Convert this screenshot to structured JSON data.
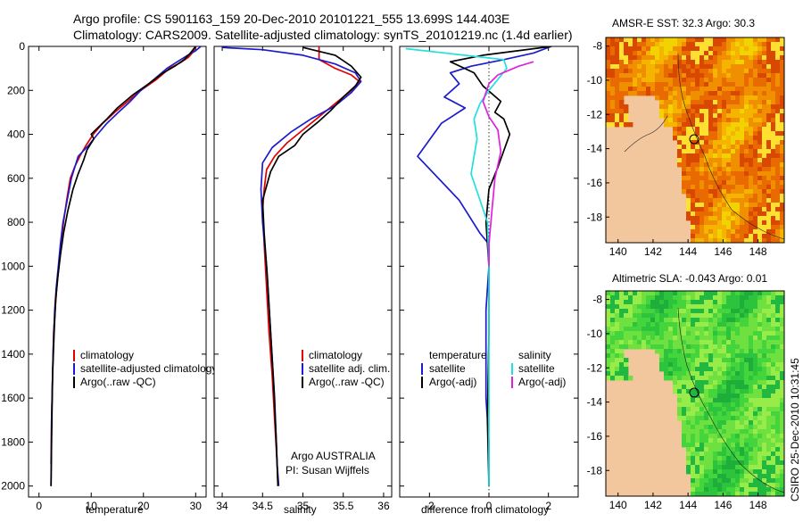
{
  "header": {
    "line1": "Argo profile: CS 5901163_159 20-Dec-2010 20101221_555 13.699S 144.403E",
    "line2": "Climatology: CARS2009. Satellite-adjusted climatology: synTS_20101219.nc (1.4d earlier)"
  },
  "colors": {
    "climatology": "#e00000",
    "satellite": "#1b1bcc",
    "argo": "#000000",
    "sat_sal": "#20e0e0",
    "argo_sal": "#e020e0"
  },
  "chart_data": [
    {
      "id": "temperature",
      "type": "line",
      "xlabel": "temperature",
      "ylabel": "",
      "xlim": [
        -2,
        32
      ],
      "ylim": [
        2050,
        0
      ],
      "xticks": [
        0,
        10,
        20,
        30
      ],
      "xtick_labels": [
        "0",
        "10",
        "20",
        "30"
      ],
      "yticks": [
        0,
        200,
        400,
        600,
        800,
        1000,
        1200,
        1400,
        1600,
        1800,
        2000
      ],
      "ytick_labels": [
        "0",
        "200",
        "400",
        "600",
        "800",
        "1000",
        "1200",
        "1400",
        "1600",
        "1800",
        "2000"
      ],
      "legend": [
        "climatology",
        "satellite-adjusted climatology",
        "Argo(..raw -QC)"
      ],
      "series": [
        {
          "name": "climatology",
          "color": "#e00000",
          "x": [
            30.0,
            29.5,
            28.6,
            27.0,
            25.0,
            22.5,
            19.5,
            17.0,
            14.5,
            12.2,
            10.4,
            9.0,
            7.8,
            6.8,
            6.0,
            5.3,
            4.7,
            4.2,
            3.8,
            3.4,
            3.1,
            2.8,
            2.6,
            2.4,
            2.3
          ],
          "y": [
            0,
            25,
            50,
            75,
            100,
            150,
            200,
            250,
            300,
            350,
            400,
            450,
            500,
            550,
            600,
            700,
            800,
            900,
            1000,
            1100,
            1200,
            1300,
            1500,
            1700,
            1900
          ]
        },
        {
          "name": "satellite-adjusted climatology",
          "color": "#1b1bcc",
          "x": [
            31.0,
            30.0,
            28.5,
            26.5,
            24.5,
            22.0,
            19.5,
            17.5,
            15.2,
            13.0,
            11.2,
            9.5,
            7.5,
            6.2,
            5.4,
            4.6,
            4.1,
            3.7,
            3.3,
            3.0,
            2.7,
            2.4,
            2.3
          ],
          "y": [
            0,
            20,
            40,
            70,
            100,
            150,
            200,
            250,
            300,
            350,
            400,
            450,
            500,
            600,
            700,
            800,
            900,
            1000,
            1100,
            1200,
            1400,
            1700,
            2000
          ]
        },
        {
          "name": "Argo(..raw -QC)",
          "color": "#000000",
          "x": [
            30.0,
            29.0,
            27.8,
            26.0,
            23.8,
            21.0,
            18.0,
            15.0,
            13.0,
            10.0,
            10.5,
            9.2,
            8.5,
            7.5,
            6.5,
            5.5,
            4.7,
            4.1,
            3.6,
            3.2,
            2.9,
            2.6,
            2.4,
            2.3
          ],
          "y": [
            0,
            30,
            60,
            90,
            120,
            170,
            220,
            280,
            330,
            400,
            420,
            470,
            520,
            580,
            650,
            750,
            850,
            950,
            1050,
            1150,
            1300,
            1500,
            1800,
            2000
          ]
        }
      ]
    },
    {
      "id": "salinity",
      "type": "line",
      "xlabel": "salinity",
      "ylabel": "",
      "xlim": [
        33.9,
        36.1
      ],
      "ylim": [
        2050,
        0
      ],
      "xticks": [
        34,
        34.5,
        35,
        35.5,
        36
      ],
      "xtick_labels": [
        "34",
        "34.5",
        "35",
        "35.5",
        "36"
      ],
      "legend": [
        "climatology",
        "satellite adj. clim.",
        "Argo(..raw -QC)"
      ],
      "annotation_line1": "Argo AUSTRALIA",
      "annotation_line2": "PI: Susan Wijffels",
      "series": [
        {
          "name": "climatology",
          "color": "#e00000",
          "x": [
            35.2,
            35.2,
            35.2,
            35.4,
            35.6,
            35.7,
            35.6,
            35.4,
            35.2,
            35.0,
            34.8,
            34.65,
            34.55,
            34.52,
            34.5,
            34.52,
            34.55,
            34.58,
            34.62,
            34.65,
            34.68,
            34.69
          ],
          "y": [
            0,
            30,
            60,
            100,
            130,
            160,
            200,
            260,
            320,
            380,
            440,
            500,
            560,
            650,
            750,
            900,
            1100,
            1300,
            1500,
            1700,
            1900,
            2000
          ]
        },
        {
          "name": "satellite adj. clim.",
          "color": "#1b1bcc",
          "x": [
            34.0,
            34.5,
            35.0,
            35.4,
            35.65,
            35.72,
            35.6,
            35.4,
            35.1,
            34.85,
            34.62,
            34.5,
            34.48,
            34.5,
            34.55,
            34.6,
            34.65,
            34.68,
            34.7
          ],
          "y": [
            5,
            15,
            40,
            80,
            120,
            160,
            210,
            270,
            330,
            390,
            460,
            530,
            650,
            800,
            1000,
            1300,
            1600,
            1900,
            2000
          ]
        },
        {
          "name": "Argo(..raw -QC)",
          "color": "#000000",
          "x": [
            35.0,
            35.4,
            35.6,
            35.72,
            35.65,
            35.5,
            35.35,
            35.2,
            35.0,
            34.9,
            34.7,
            34.6,
            34.5,
            34.52,
            34.56,
            34.6,
            34.64,
            34.67,
            34.69
          ],
          "y": [
            5,
            40,
            90,
            140,
            180,
            230,
            290,
            340,
            400,
            450,
            500,
            570,
            700,
            850,
            1050,
            1300,
            1550,
            1800,
            2000
          ]
        }
      ]
    },
    {
      "id": "difference",
      "type": "line",
      "xlabel": "difference from climatology",
      "ylabel": "",
      "xlim": [
        -3.0,
        3.0
      ],
      "ylim": [
        2050,
        0
      ],
      "xticks": [
        -2,
        0,
        2
      ],
      "xtick_labels": [
        "-2",
        "0",
        "2"
      ],
      "legend_temperature_title": "temperature",
      "legend_salinity_title": "salinity",
      "legend": [
        "satellite",
        "Argo(-adj)",
        "satellite",
        "Argo(-adj)"
      ],
      "series": [
        {
          "name": "temperature satellite",
          "color": "#1b1bcc",
          "x": [
            2.1,
            1.5,
            0.5,
            -0.6,
            -1.3,
            -1.0,
            -1.5,
            -0.8,
            -1.6,
            -2.4,
            -1.0,
            -0.3,
            0.0,
            0.0,
            -0.1,
            -0.1,
            -0.1,
            0.0,
            0.0
          ],
          "y": [
            0,
            30,
            60,
            90,
            120,
            170,
            230,
            280,
            350,
            500,
            700,
            850,
            900,
            1000,
            1200,
            1400,
            1600,
            1800,
            2000
          ]
        },
        {
          "name": "temperature Argo(-adj)",
          "color": "#000000",
          "x": [
            2.1,
            -0.2,
            -1.3,
            -0.5,
            -0.2,
            0.4,
            0.2,
            0.5,
            0.7,
            0.3,
            0.0,
            -0.1,
            0.0,
            0.0,
            -0.05,
            0.0
          ],
          "y": [
            0,
            40,
            70,
            120,
            180,
            250,
            300,
            330,
            400,
            550,
            650,
            800,
            1000,
            1300,
            1700,
            2000
          ]
        },
        {
          "name": "salinity satellite",
          "color": "#20e0e0",
          "x": [
            -2.8,
            0.5,
            0.6,
            0.3,
            0.0,
            -0.3,
            -0.5,
            -0.4,
            -0.5,
            -0.6,
            -0.3,
            -0.05,
            0.0,
            0.0,
            0.0
          ],
          "y": [
            10,
            60,
            100,
            150,
            200,
            260,
            330,
            420,
            500,
            580,
            700,
            800,
            1000,
            1500,
            2000
          ]
        },
        {
          "name": "salinity Argo(-adj)",
          "color": "#e020e0",
          "x": [
            1.5,
            1.0,
            0.3,
            0.0,
            -0.2,
            0.0,
            0.3,
            0.4,
            0.2,
            0.1,
            0.0,
            0.0
          ],
          "y": [
            70,
            90,
            130,
            170,
            250,
            320,
            380,
            480,
            600,
            750,
            900,
            1000
          ]
        }
      ]
    }
  ],
  "maps": [
    {
      "id": "sst",
      "title": "AMSR-E SST: 32.3 Argo: 30.3",
      "xticks": [
        "140",
        "142",
        "144",
        "146",
        "148"
      ],
      "yticks": [
        "-8",
        "-10",
        "-12",
        "-14",
        "-16",
        "-18"
      ],
      "type": "heatmap"
    },
    {
      "id": "sla",
      "title": "Altimetric SLA: -0.043 Argo: 0.01",
      "xticks": [
        "140",
        "142",
        "144",
        "146",
        "148"
      ],
      "yticks": [
        "-8",
        "-10",
        "-12",
        "-14",
        "-16",
        "-18"
      ],
      "type": "heatmap"
    }
  ],
  "footer_vertical": "CSIRO 25-Dec-2010 10:31:45"
}
